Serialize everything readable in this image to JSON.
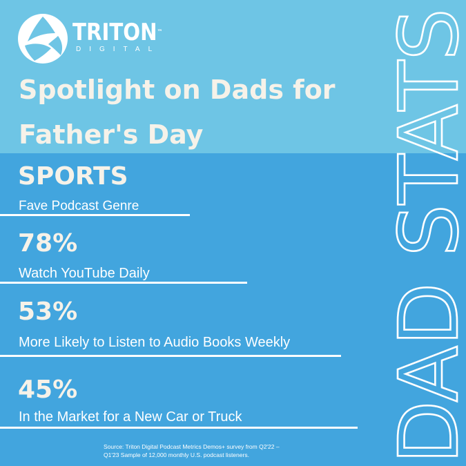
{
  "brand": {
    "name": "TRITON",
    "sub": "DIGITAL",
    "trademark": "™"
  },
  "title": {
    "line1": "Spotlight on Dads for",
    "line2": "Father's Day"
  },
  "stats": [
    {
      "value": "SPORTS",
      "label": "Fave Podcast Genre"
    },
    {
      "value": "78%",
      "label": "Watch YouTube Daily"
    },
    {
      "value": "53%",
      "label": "More Likely to Listen to Audio Books Weekly"
    },
    {
      "value": "45%",
      "label": "In the Market for a New Car or Truck"
    }
  ],
  "side_text": "DAD STATS",
  "source": {
    "line1": "Source: Triton Digital Podcast Metrics Demos+ survey from Q2'22 –",
    "line2": "Q1'23 Sample of 12,000 monthly U.S. podcast listeners."
  },
  "colors": {
    "top_band": "#6ec5e5",
    "background": "#42a5de",
    "title_text": "#f6f2e9",
    "rules": "#ffffff"
  }
}
